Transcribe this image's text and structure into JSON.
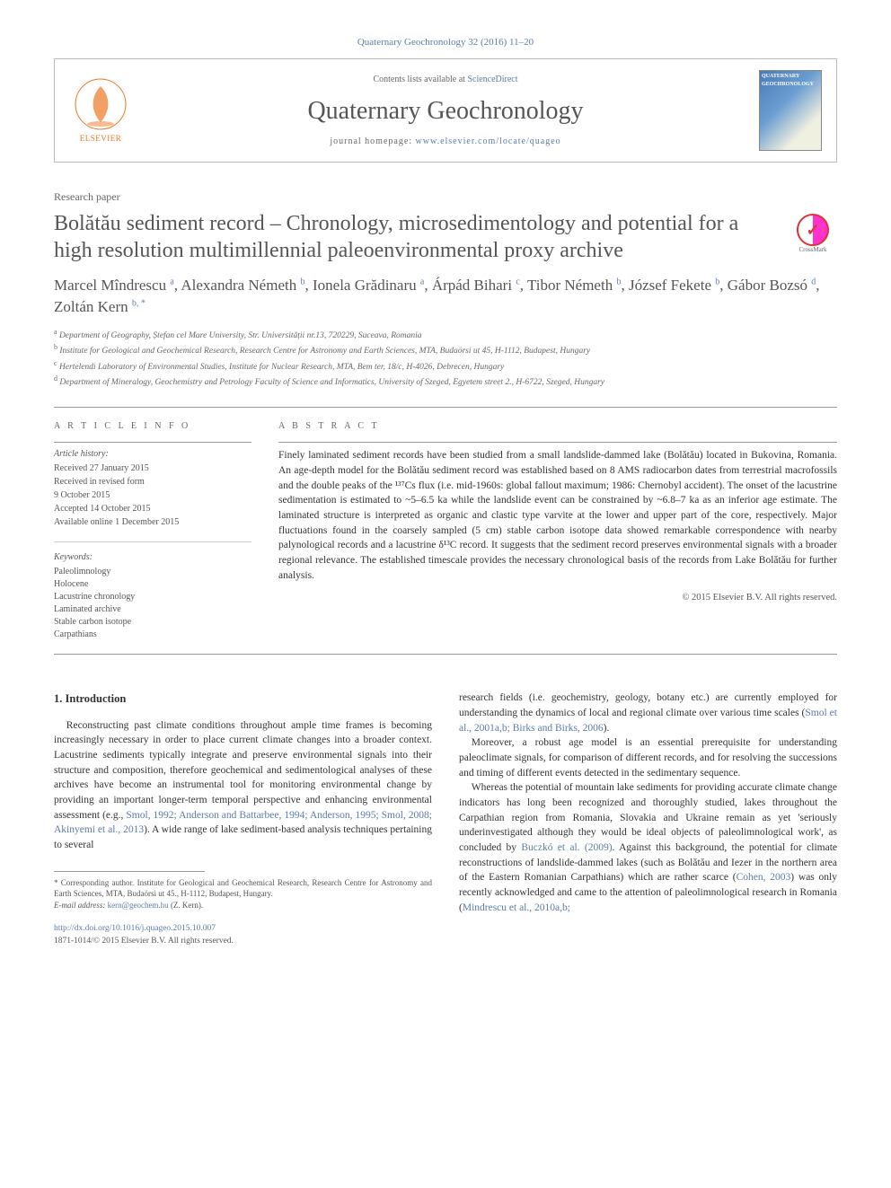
{
  "citation_top": "Quaternary Geochronology 32 (2016) 11–20",
  "header": {
    "contents_prefix": "Contents lists available at ",
    "contents_link": "ScienceDirect",
    "journal_title": "Quaternary Geochronology",
    "homepage_prefix": "journal homepage: ",
    "homepage_link": "www.elsevier.com/locate/quageo",
    "elsevier_label": "ELSEVIER",
    "cover_label": "QUATERNARY GEOCHRONOLOGY"
  },
  "crossmark_label": "CrossMark",
  "paper_type": "Research paper",
  "title": "Bolătău sediment record – Chronology, microsedimentology and potential for a high resolution multimillennial paleoenvironmental proxy archive",
  "authors_html": "Marcel Mîndrescu <sup>a</sup>, Alexandra Németh <sup>b</sup>, Ionela Grădinaru <sup>a</sup>, Árpád Bihari <sup>c</sup>, Tibor Németh <sup>b</sup>, József Fekete <sup>b</sup>, Gábor Bozsó <sup>d</sup>, Zoltán Kern <sup>b, *</sup>",
  "affiliations": [
    {
      "sup": "a",
      "text": "Department of Geography, Ștefan cel Mare University, Str. Universității nr.13, 720229, Suceava, Romania"
    },
    {
      "sup": "b",
      "text": "Institute for Geological and Geochemical Research, Research Centre for Astronomy and Earth Sciences, MTA, Budaörsi ut 45, H-1112, Budapest, Hungary"
    },
    {
      "sup": "c",
      "text": "Hertelendi Laboratory of Environmental Studies, Institute for Nuclear Research, MTA, Bem ter, 18/c, H-4026, Debrecen, Hungary"
    },
    {
      "sup": "d",
      "text": "Department of Mineralogy, Geochemistry and Petrology Faculty of Science and Informatics, University of Szeged, Egyetem street 2., H-6722, Szeged, Hungary"
    }
  ],
  "article_info": {
    "heading": "A R T I C L E  I N F O",
    "history_head": "Article history:",
    "history": [
      "Received 27 January 2015",
      "Received in revised form",
      "9 October 2015",
      "Accepted 14 October 2015",
      "Available online 1 December 2015"
    ],
    "keywords_head": "Keywords:",
    "keywords": [
      "Paleolimnology",
      "Holocene",
      "Lacustrine chronology",
      "Laminated archive",
      "Stable carbon isotope",
      "Carpathians"
    ]
  },
  "abstract": {
    "heading": "A B S T R A C T",
    "text": "Finely laminated sediment records have been studied from a small landslide-dammed lake (Bolătău) located in Bukovina, Romania. An age-depth model for the Bolătău sediment record was established based on 8 AMS radiocarbon dates from terrestrial macrofossils and the double peaks of the ¹³⁷Cs flux (i.e. mid-1960s: global fallout maximum; 1986: Chernobyl accident). The onset of the lacustrine sedimentation is estimated to ~5–6.5 ka while the landslide event can be constrained by ~6.8–7 ka as an inferior age estimate. The laminated structure is interpreted as organic and clastic type varvite at the lower and upper part of the core, respectively. Major fluctuations found in the coarsely sampled (5 cm) stable carbon isotope data showed remarkable correspondence with nearby palynological records and a lacustrine δ¹³C record. It suggests that the sediment record preserves environmental signals with a broader regional relevance. The established timescale provides the necessary chronological basis of the records from Lake Bolătău for further analysis.",
    "copyright": "© 2015 Elsevier B.V. All rights reserved."
  },
  "section1": {
    "heading": "1. Introduction",
    "col1_p1_a": "Reconstructing past climate conditions throughout ample time frames is becoming increasingly necessary in order to place current climate changes into a broader context. Lacustrine sediments typically integrate and preserve environmental signals into their structure and composition, therefore geochemical and sedimentological analyses of these archives have become an instrumental tool for monitoring environmental change by providing an important longer-term temporal perspective and enhancing environmental assessment (e.g., ",
    "col1_refs1": "Smol, 1992; Anderson and Battarbee, 1994; Anderson, 1995; Smol, 2008; Akinyemi et al., 2013",
    "col1_p1_b": "). A wide range of lake sediment-based analysis techniques pertaining to several",
    "col2_p1_a": "research fields (i.e. geochemistry, geology, botany etc.) are currently employed for understanding the dynamics of local and regional climate over various time scales (",
    "col2_refs1": "Smol et al., 2001a,b; Birks and Birks, 2006",
    "col2_p1_b": ").",
    "col2_p2": "Moreover, a robust age model is an essential prerequisite for understanding paleoclimate signals, for comparison of different records, and for resolving the successions and timing of different events detected in the sedimentary sequence.",
    "col2_p3_a": "Whereas the potential of mountain lake sediments for providing accurate climate change indicators has long been recognized and thoroughly studied, lakes throughout the Carpathian region from Romania, Slovakia and Ukraine remain as yet 'seriously underinvestigated although they would be ideal objects of paleolimnological work', as concluded by ",
    "col2_ref2": "Buczkó et al. (2009)",
    "col2_p3_b": ". Against this background, the potential for climate reconstructions of landslide-dammed lakes (such as Bolătău and Iezer in the northern area of the Eastern Romanian Carpathians) which are rather scarce (",
    "col2_ref3": "Cohen, 2003",
    "col2_p3_c": ") was only recently acknowledged and came to the attention of paleolimnological research in Romania (",
    "col2_ref4": "Mindrescu et al., 2010a,b;"
  },
  "footnote": {
    "corr_label": "* Corresponding author. Institute for Geological and Geochemical Research, Research Centre for Astronomy and Earth Sciences, MTA, Budaörsi ut 45., H-1112, Budapest, Hungary.",
    "email_label": "E-mail address:",
    "email": "kern@geochem.hu",
    "email_who": "(Z. Kern)."
  },
  "doi": {
    "url": "http://dx.doi.org/10.1016/j.quageo.2015.10.007",
    "issn_line": "1871-1014/© 2015 Elsevier B.V. All rights reserved."
  },
  "colors": {
    "link": "#5b7ca8",
    "elsevier_orange": "#ee7722",
    "heading_gray": "#666666",
    "text": "#333333",
    "rule": "#999999"
  }
}
